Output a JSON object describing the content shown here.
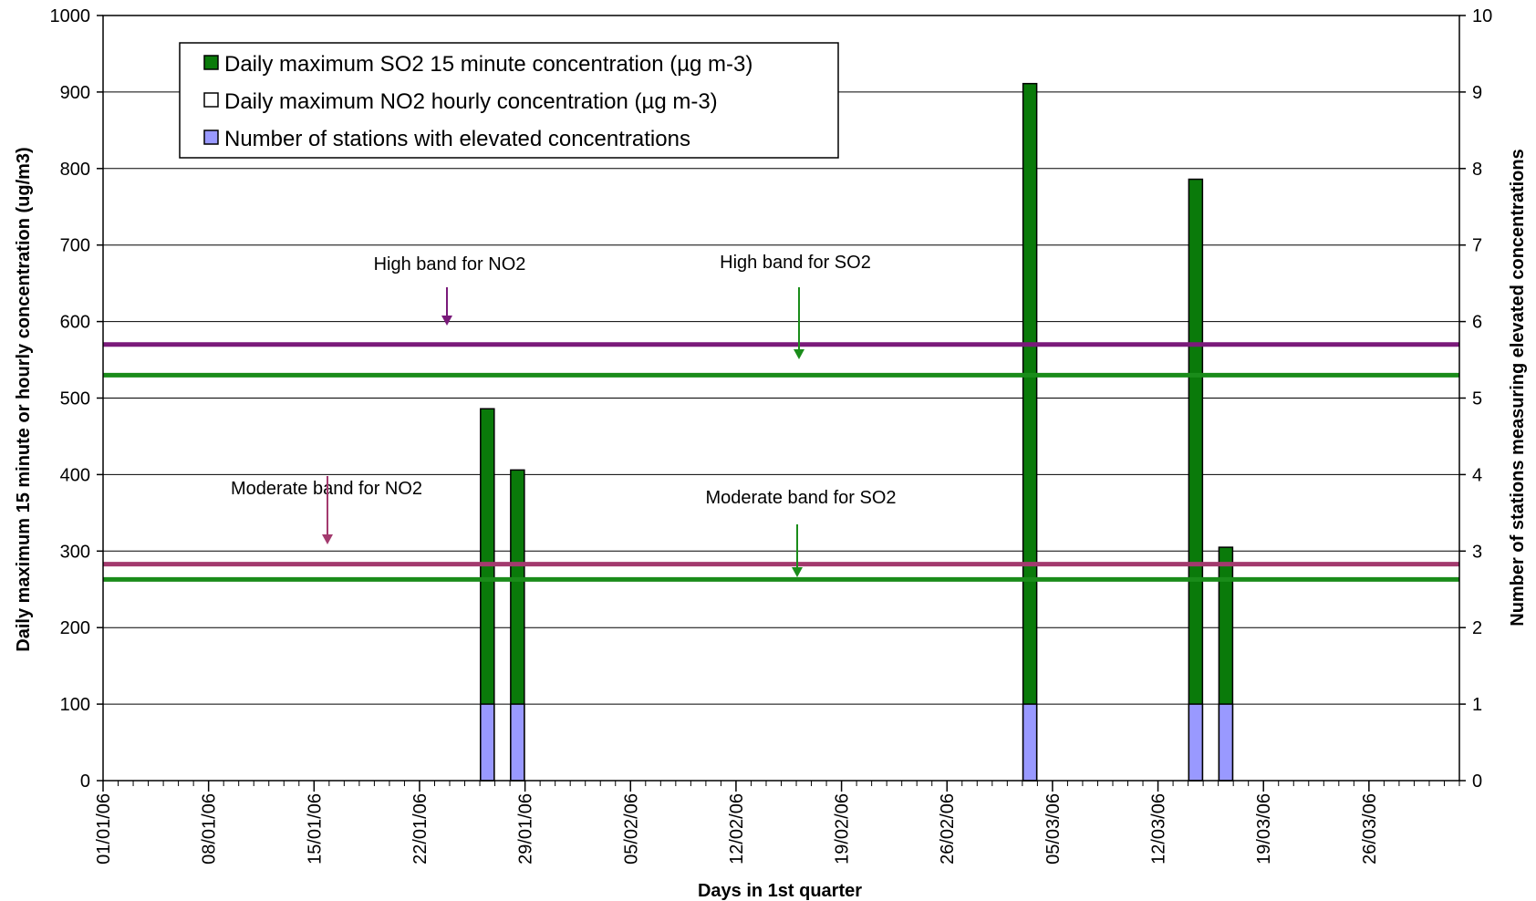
{
  "chart_data": {
    "type": "bar",
    "title": "",
    "xlabel": "Days in 1st quarter",
    "ylabel": "Daily maximum 15 minute or hourly concentration (ug/m3)",
    "y2label": "Number of stations measuring elevated concentrations",
    "ylim": [
      0,
      1000
    ],
    "y2lim": [
      0,
      10
    ],
    "yticks": [
      "0",
      "100",
      "200",
      "300",
      "400",
      "500",
      "600",
      "700",
      "800",
      "900",
      "1000"
    ],
    "y2ticks": [
      "0",
      "1",
      "2",
      "3",
      "4",
      "5",
      "6",
      "7",
      "8",
      "9",
      "10"
    ],
    "xlim": [
      "01/01/06",
      "31/03/06"
    ],
    "x_tick_labels": [
      "01/01/06",
      "08/01/06",
      "15/01/06",
      "22/01/06",
      "29/01/06",
      "05/02/06",
      "12/02/06",
      "19/02/06",
      "26/02/06",
      "05/03/06",
      "12/03/06",
      "19/03/06",
      "26/03/06"
    ],
    "grid": "horizontal",
    "legend_position": "top-left",
    "series": [
      {
        "name": "Daily maximum SO2 15 minute concentration (µg m-3)",
        "axis": "left",
        "color": "#0a7a0a",
        "points": [
          {
            "date": "26/01/06",
            "value": 486
          },
          {
            "date": "28/01/06",
            "value": 406
          },
          {
            "date": "03/03/06",
            "value": 911
          },
          {
            "date": "14/03/06",
            "value": 786
          },
          {
            "date": "16/03/06",
            "value": 305
          }
        ]
      },
      {
        "name": "Daily maximum NO2 hourly concentration (µg m-3)",
        "axis": "left",
        "color": "#ffffff",
        "points": []
      },
      {
        "name": "Number of stations with elevated concentrations",
        "axis": "right",
        "color": "#9999ff",
        "points": [
          {
            "date": "26/01/06",
            "value": 1
          },
          {
            "date": "28/01/06",
            "value": 1
          },
          {
            "date": "03/03/06",
            "value": 1
          },
          {
            "date": "14/03/06",
            "value": 1
          },
          {
            "date": "16/03/06",
            "value": 1
          }
        ]
      }
    ],
    "bands": [
      {
        "label": "High band for NO2",
        "value": 570,
        "color": "#7a1a7a"
      },
      {
        "label": "High band for SO2",
        "value": 530,
        "color": "#1a8c1a"
      },
      {
        "label": "Moderate band for NO2",
        "value": 283,
        "color": "#a33a6e"
      },
      {
        "label": "Moderate band for SO2",
        "value": 263,
        "color": "#1a8c1a"
      }
    ]
  }
}
